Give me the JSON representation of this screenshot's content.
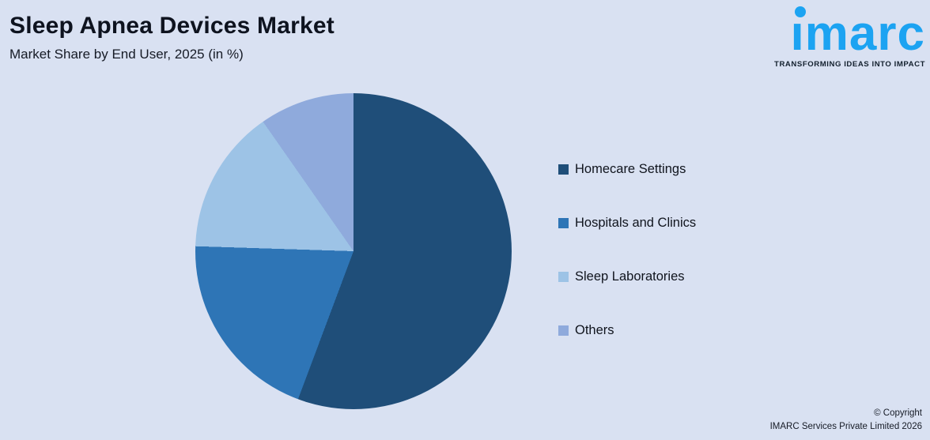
{
  "header": {
    "title": "Sleep Apnea Devices Market",
    "subtitle": "Market Share by End User, 2025 (in %)"
  },
  "logo": {
    "brand": "imarc",
    "brand_dotless": "ımarc",
    "tagline": "TRANSFORMING IDEAS INTO IMPACT",
    "brand_color": "#1CA3F2"
  },
  "chart_data": {
    "type": "pie",
    "title": "Sleep Apnea Devices Market",
    "subtitle": "Market Share by End User, 2025 (in %)",
    "categories": [
      "Homecare Settings",
      "Hospitals and Clinics",
      "Sleep Laboratories",
      "Others"
    ],
    "values": [
      55.7,
      19.8,
      14.8,
      9.7
    ],
    "colors": [
      "#1F4E79",
      "#2E75B6",
      "#9DC3E6",
      "#8FAADC"
    ],
    "start_angle_deg": 0,
    "direction": "clockwise",
    "legend_position": "right",
    "data_labels": false
  },
  "legend": {
    "items": [
      {
        "label": "Homecare Settings",
        "color": "#1F4E79"
      },
      {
        "label": "Hospitals and Clinics",
        "color": "#2E75B6"
      },
      {
        "label": "Sleep Laboratories",
        "color": "#9DC3E6"
      },
      {
        "label": "Others",
        "color": "#8FAADC"
      }
    ]
  },
  "footer": {
    "line1": "© Copyright",
    "line2": "IMARC Services Private Limited 2026"
  },
  "colors": {
    "background": "#D9E1F2",
    "title_text": "#0E131F",
    "body_text": "#10141D"
  }
}
